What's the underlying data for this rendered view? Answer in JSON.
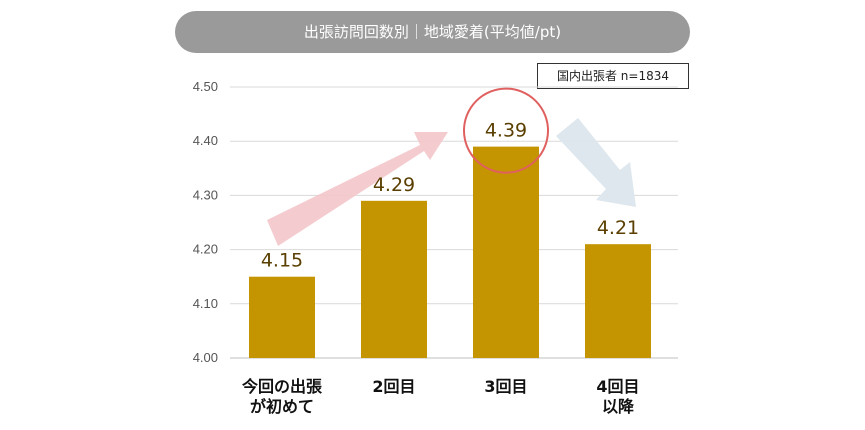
{
  "chart_data": {
    "type": "bar",
    "title": "出張訪問回数別｜地域愛着(平均値/pt)",
    "sample_note": "国内出張者 n=1834",
    "categories": [
      [
        "今回の出張",
        "が初めて"
      ],
      [
        "2回目"
      ],
      [
        "3回目"
      ],
      [
        "4回目",
        "以降"
      ]
    ],
    "values": [
      4.15,
      4.29,
      4.39,
      4.21
    ],
    "value_labels": [
      "4.15",
      "4.29",
      "4.39",
      "4.21"
    ],
    "ylim": [
      4.0,
      4.5
    ],
    "yticks": [
      "4.00",
      "4.10",
      "4.20",
      "4.30",
      "4.40",
      "4.50"
    ],
    "grid": true,
    "highlight_index": 2,
    "colors": {
      "bar": "#c49500",
      "value_text": "#5a3f00",
      "grid": "#d9d9d9",
      "up_arrow": "#f3c7ca",
      "down_arrow": "#dbe6ec",
      "highlight_circle": "#e06060",
      "title_pill": "#9a9a9a"
    }
  }
}
